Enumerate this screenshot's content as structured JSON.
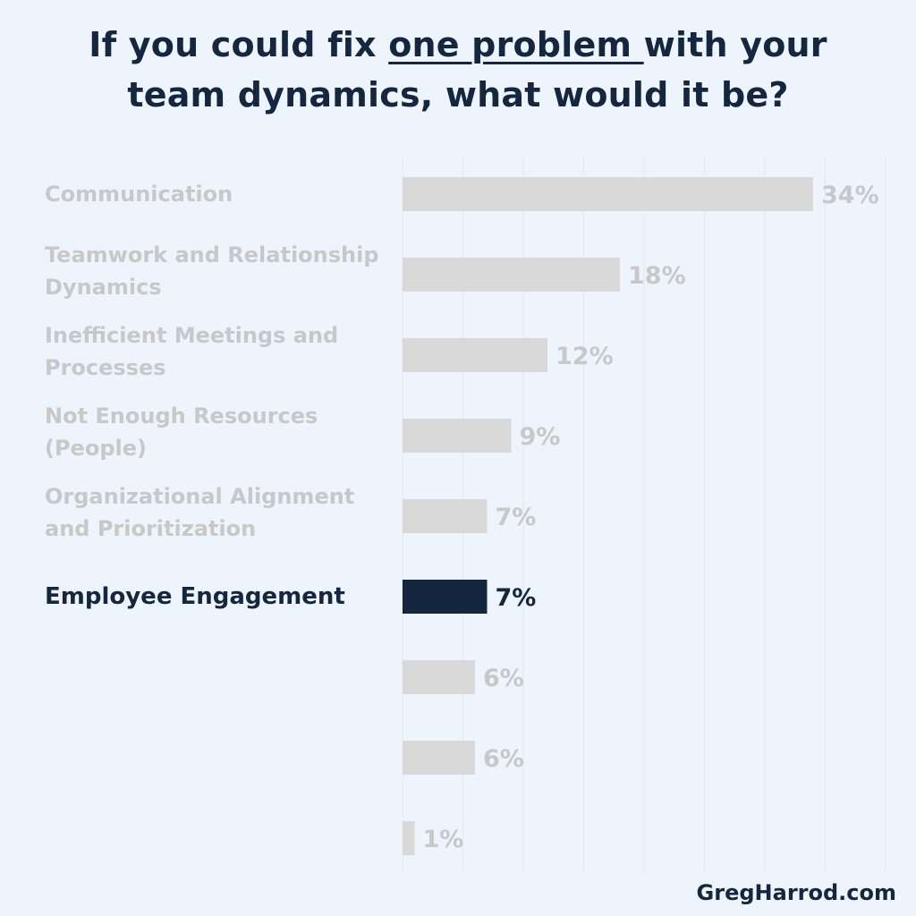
{
  "title": {
    "line1_before": "If you could fix ",
    "line1_underlined": "one problem ",
    "line1_after": "with your",
    "line2": "team dynamics, what would it be?"
  },
  "footer": "GregHarrod.com",
  "colors": {
    "background": "#eef4fc",
    "bar_default": "#d9d9d9",
    "bar_highlight": "#14273f",
    "label_default": "#c8c8c8",
    "label_highlight": "#14273f",
    "gridline": "#e2e8f0"
  },
  "chart_data": {
    "type": "bar",
    "orientation": "horizontal",
    "categories": [
      [
        "Communication"
      ],
      [
        "Teamwork and Relationship",
        "Dynamics"
      ],
      [
        "Inefficient Meetings and",
        "Processes"
      ],
      [
        "Not Enough Resources",
        "(People)"
      ],
      [
        "Organizational Alignment",
        "and Prioritization"
      ],
      [
        "Employee Engagement"
      ],
      [],
      [],
      []
    ],
    "values": [
      34,
      18,
      12,
      9,
      7,
      7,
      6,
      6,
      1
    ],
    "data_labels": [
      "34%",
      "18%",
      "12%",
      "9%",
      "7%",
      "7%",
      "6%",
      "6%",
      "1%"
    ],
    "highlight_index": 5,
    "xlim": [
      0,
      40
    ],
    "grid": true,
    "legend": "none"
  }
}
